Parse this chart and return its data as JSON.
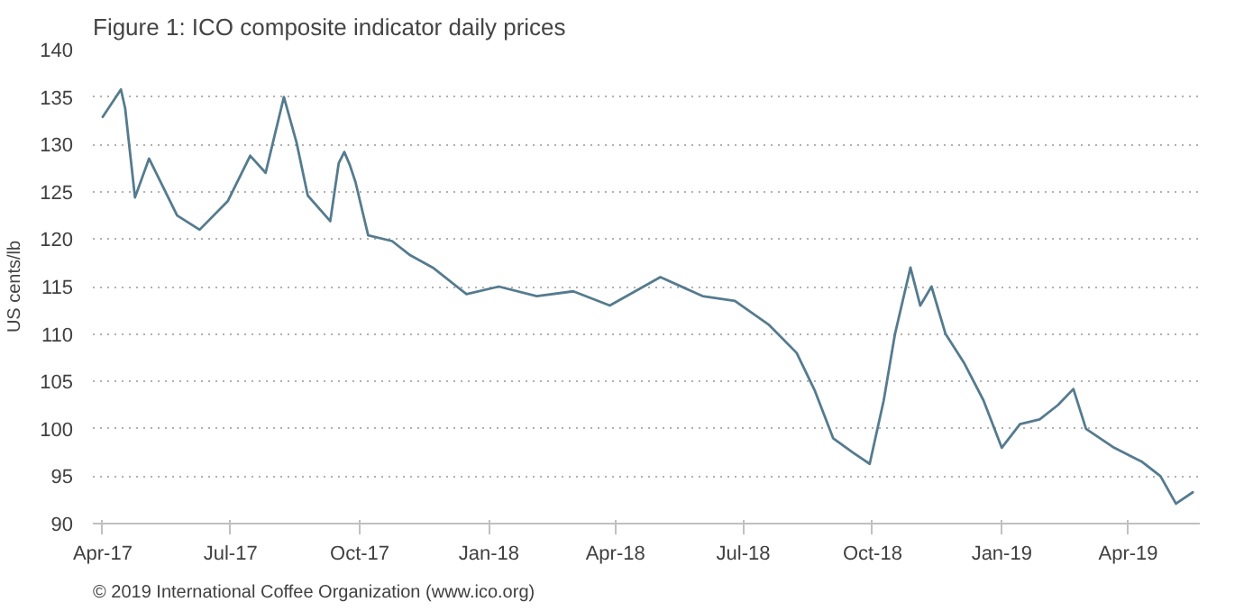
{
  "chart_data": {
    "type": "line",
    "title": "Figure 1: ICO composite indicator daily prices",
    "ylabel": "US cents/lb",
    "annotations": [
      "© 2019 International Coffee Organization (www.ico.org)"
    ],
    "x": [
      "2017-04-01",
      "2017-04-14",
      "2017-04-17",
      "2017-04-24",
      "2017-05-04",
      "2017-05-24",
      "2017-06-09",
      "2017-06-29",
      "2017-07-15",
      "2017-07-26",
      "2017-08-08",
      "2017-08-17",
      "2017-08-25",
      "2017-09-10",
      "2017-09-16",
      "2017-09-20",
      "2017-09-24",
      "2017-09-28",
      "2017-10-07",
      "2017-10-24",
      "2017-11-06",
      "2017-11-22",
      "2017-12-16",
      "2018-01-08",
      "2018-02-04",
      "2018-03-02",
      "2018-03-28",
      "2018-05-03",
      "2018-06-02",
      "2018-06-25",
      "2018-07-19",
      "2018-08-08",
      "2018-08-21",
      "2018-09-03",
      "2018-09-17",
      "2018-09-29",
      "2018-10-09",
      "2018-10-17",
      "2018-10-28",
      "2018-11-04",
      "2018-11-12",
      "2018-11-22",
      "2018-12-05",
      "2018-12-19",
      "2019-01-01",
      "2019-01-14",
      "2019-01-28",
      "2019-02-10",
      "2019-02-21",
      "2019-03-02",
      "2019-03-22",
      "2019-04-11",
      "2019-04-24",
      "2019-05-05",
      "2019-05-17"
    ],
    "series": [
      {
        "color": "#557b8e",
        "values": [
          132.9,
          135.8,
          133.8,
          124.4,
          128.5,
          122.5,
          121,
          124,
          128.8,
          127,
          135,
          130.2,
          124.6,
          121.9,
          128,
          129.2,
          127.8,
          126,
          120.4,
          119.8,
          118.3,
          117,
          114.2,
          115,
          114,
          114.5,
          113,
          116,
          114,
          113.5,
          111,
          108,
          104,
          99,
          97.5,
          96.3,
          103,
          110,
          117,
          113,
          115,
          110,
          107,
          103,
          98,
          100.5,
          101,
          102.5,
          104.2,
          100,
          98,
          96.5,
          95,
          92.1,
          93.3
        ]
      }
    ],
    "xlim": [
      "2017-03-25",
      "2019-05-22"
    ],
    "xticks": [
      {
        "value": "2017-04-01",
        "label": "Apr-17"
      },
      {
        "value": "2017-07-01",
        "label": "Jul-17"
      },
      {
        "value": "2017-10-01",
        "label": "Oct-17"
      },
      {
        "value": "2018-01-01",
        "label": "Jan-18"
      },
      {
        "value": "2018-04-01",
        "label": "Apr-18"
      },
      {
        "value": "2018-07-01",
        "label": "Jul-18"
      },
      {
        "value": "2018-10-01",
        "label": "Oct-18"
      },
      {
        "value": "2019-01-01",
        "label": "Jan-19"
      },
      {
        "value": "2019-04-01",
        "label": "Apr-19"
      }
    ],
    "ylim": [
      90,
      140
    ],
    "yticks": [
      90,
      95,
      100,
      105,
      110,
      115,
      120,
      125,
      130,
      135,
      140
    ],
    "grid": "y",
    "marker": "none",
    "line_style": "solid"
  }
}
